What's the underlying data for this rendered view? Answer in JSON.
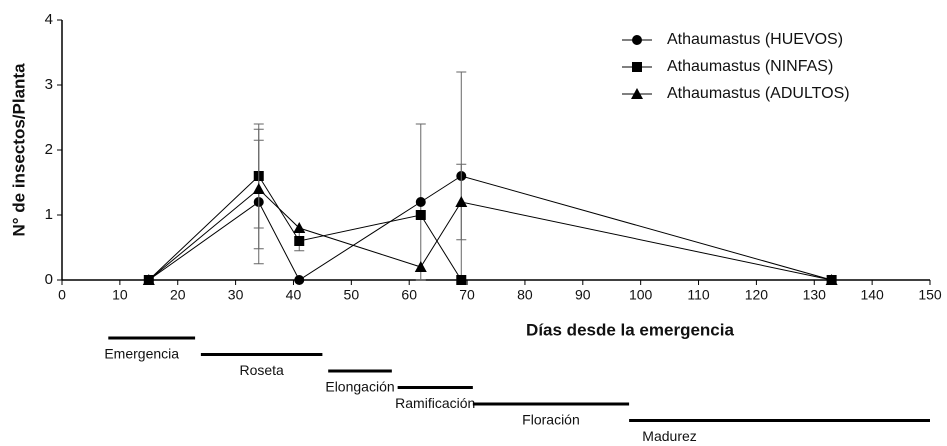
{
  "chart_data": {
    "type": "line",
    "xlabel": "Días desde la emergencia",
    "ylabel": "N° de insectos/Planta",
    "x": [
      15,
      34,
      41,
      62,
      69,
      133
    ],
    "series": [
      {
        "name": "Athaumastus (HUEVOS)",
        "marker": "circle",
        "color": "#000000",
        "values": [
          0,
          1.2,
          0,
          1.2,
          1.6,
          0
        ],
        "errors": [
          null,
          0.95,
          null,
          1.2,
          1.6,
          null
        ]
      },
      {
        "name": "Athaumastus (NINFAS)",
        "marker": "square",
        "color": "#000000",
        "values": [
          0,
          1.6,
          0.6,
          1.0,
          0,
          0
        ],
        "errors": [
          null,
          0.8,
          0.15,
          null,
          null,
          null
        ]
      },
      {
        "name": "Athaumastus (ADULTOS)",
        "marker": "triangle",
        "color": "#000000",
        "values": [
          0,
          1.4,
          0.8,
          0.2,
          1.2,
          0
        ],
        "errors": [
          null,
          0.92,
          null,
          null,
          0.58,
          null
        ]
      }
    ],
    "xlim": [
      0,
      150
    ],
    "xticks": [
      0,
      10,
      20,
      30,
      40,
      50,
      60,
      70,
      80,
      90,
      100,
      110,
      120,
      130,
      140,
      150
    ],
    "ylim": [
      0,
      4
    ],
    "yticks": [
      0,
      1,
      2,
      3,
      4
    ],
    "legend": "upper right",
    "stages": [
      {
        "label": "Emergencia",
        "start": 8,
        "end": 23
      },
      {
        "label": "Roseta",
        "start": 24,
        "end": 45
      },
      {
        "label": "Elongación",
        "start": 46,
        "end": 57
      },
      {
        "label": "Ramificación",
        "start": 58,
        "end": 71
      },
      {
        "label": "Floración",
        "start": 71,
        "end": 98
      },
      {
        "label": "Madurez",
        "start": 98,
        "end": 150
      }
    ]
  }
}
